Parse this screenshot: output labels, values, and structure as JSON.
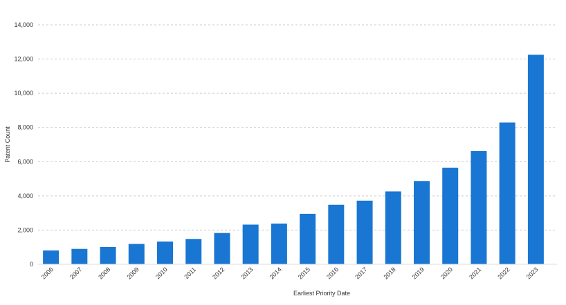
{
  "chart_data": {
    "type": "bar",
    "title": "",
    "xlabel": "Earliest Priority Date",
    "ylabel": "Patent Count",
    "categories": [
      "2006",
      "2007",
      "2008",
      "2009",
      "2010",
      "2011",
      "2012",
      "2013",
      "2014",
      "2015",
      "2016",
      "2017",
      "2018",
      "2019",
      "2020",
      "2021",
      "2022",
      "2023"
    ],
    "values": [
      810,
      900,
      1010,
      1190,
      1330,
      1480,
      1830,
      2320,
      2380,
      2950,
      3480,
      3720,
      4260,
      4870,
      5650,
      6620,
      8290,
      12250
    ],
    "ylim": [
      0,
      14000
    ],
    "yticks": [
      0,
      2000,
      4000,
      6000,
      8000,
      10000,
      12000,
      14000
    ],
    "ytick_labels": [
      "0",
      "2,000",
      "4,000",
      "6,000",
      "8,000",
      "10,000",
      "12,000",
      "14,000"
    ],
    "grid": true,
    "bar_color": "#1976d2",
    "grid_color": "#cccccc"
  }
}
